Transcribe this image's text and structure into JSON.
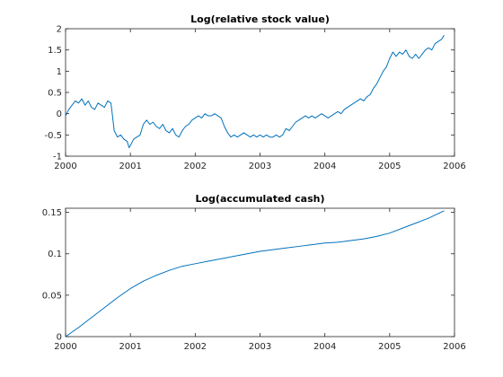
{
  "chart_data": [
    {
      "type": "line",
      "title": "Log(relative stock value)",
      "xlabel": "",
      "ylabel": "",
      "xlim": [
        2000,
        2006
      ],
      "ylim": [
        -1,
        2
      ],
      "xticks": [
        2000,
        2001,
        2002,
        2003,
        2004,
        2005,
        2006
      ],
      "yticks": [
        -1,
        -0.5,
        0,
        0.5,
        1,
        1.5,
        2
      ],
      "ytick_labels": [
        "-1",
        "-0.5",
        "0",
        "0.5",
        "1",
        "1.5",
        "2"
      ],
      "grid": false,
      "line_color": "#0072bd",
      "series": [
        {
          "x": [
            2000.0,
            2000.05,
            2000.1,
            2000.15,
            2000.2,
            2000.25,
            2000.3,
            2000.35,
            2000.4,
            2000.45,
            2000.5,
            2000.55,
            2000.6,
            2000.65,
            2000.7,
            2000.72,
            2000.75,
            2000.8,
            2000.85,
            2000.9,
            2000.95,
            2000.98,
            2001.0,
            2001.05,
            2001.1,
            2001.15,
            2001.2,
            2001.25,
            2001.3,
            2001.35,
            2001.4,
            2001.45,
            2001.5,
            2001.55,
            2001.6,
            2001.65,
            2001.7,
            2001.75,
            2001.8,
            2001.85,
            2001.9,
            2001.95,
            2002.0,
            2002.05,
            2002.1,
            2002.15,
            2002.2,
            2002.25,
            2002.3,
            2002.35,
            2002.4,
            2002.45,
            2002.5,
            2002.55,
            2002.6,
            2002.65,
            2002.7,
            2002.75,
            2002.8,
            2002.85,
            2002.9,
            2002.95,
            2003.0,
            2003.05,
            2003.1,
            2003.15,
            2003.2,
            2003.25,
            2003.3,
            2003.35,
            2003.4,
            2003.45,
            2003.5,
            2003.55,
            2003.6,
            2003.65,
            2003.7,
            2003.75,
            2003.8,
            2003.85,
            2003.9,
            2003.95,
            2004.0,
            2004.05,
            2004.1,
            2004.15,
            2004.2,
            2004.25,
            2004.3,
            2004.35,
            2004.4,
            2004.45,
            2004.5,
            2004.55,
            2004.6,
            2004.65,
            2004.7,
            2004.75,
            2004.8,
            2004.85,
            2004.9,
            2004.95,
            2005.0,
            2005.05,
            2005.1,
            2005.15,
            2005.2,
            2005.25,
            2005.3,
            2005.35,
            2005.4,
            2005.45,
            2005.5,
            2005.55,
            2005.6,
            2005.65,
            2005.7,
            2005.75,
            2005.8,
            2005.84
          ],
          "values": [
            -0.05,
            0.1,
            0.2,
            0.3,
            0.25,
            0.35,
            0.2,
            0.3,
            0.15,
            0.1,
            0.25,
            0.2,
            0.15,
            0.3,
            0.25,
            0.0,
            -0.4,
            -0.55,
            -0.5,
            -0.6,
            -0.65,
            -0.8,
            -0.75,
            -0.6,
            -0.55,
            -0.5,
            -0.25,
            -0.15,
            -0.25,
            -0.2,
            -0.3,
            -0.35,
            -0.25,
            -0.4,
            -0.45,
            -0.35,
            -0.5,
            -0.55,
            -0.4,
            -0.3,
            -0.25,
            -0.15,
            -0.1,
            -0.05,
            -0.1,
            0.0,
            -0.05,
            -0.05,
            0.0,
            -0.05,
            -0.1,
            -0.3,
            -0.45,
            -0.55,
            -0.5,
            -0.55,
            -0.5,
            -0.45,
            -0.5,
            -0.55,
            -0.5,
            -0.55,
            -0.5,
            -0.55,
            -0.5,
            -0.55,
            -0.55,
            -0.5,
            -0.55,
            -0.5,
            -0.35,
            -0.4,
            -0.3,
            -0.2,
            -0.15,
            -0.1,
            -0.05,
            -0.1,
            -0.05,
            -0.1,
            -0.05,
            0.0,
            -0.05,
            -0.1,
            -0.05,
            -0.0,
            0.05,
            0.0,
            0.1,
            0.15,
            0.2,
            0.25,
            0.3,
            0.35,
            0.3,
            0.4,
            0.45,
            0.6,
            0.7,
            0.85,
            1.0,
            1.1,
            1.3,
            1.45,
            1.35,
            1.45,
            1.4,
            1.5,
            1.35,
            1.3,
            1.4,
            1.3,
            1.4,
            1.5,
            1.55,
            1.5,
            1.65,
            1.7,
            1.75,
            1.85
          ]
        }
      ]
    },
    {
      "type": "line",
      "title": "Log(accumulated cash)",
      "xlabel": "",
      "ylabel": "",
      "xlim": [
        2000,
        2006
      ],
      "ylim": [
        0,
        0.155
      ],
      "xticks": [
        2000,
        2001,
        2002,
        2003,
        2004,
        2005,
        2006
      ],
      "yticks": [
        0,
        0.05,
        0.1,
        0.15
      ],
      "ytick_labels": [
        "0",
        "0.05",
        "0.1",
        "0.15"
      ],
      "grid": false,
      "line_color": "#0072bd",
      "series": [
        {
          "x": [
            2000.0,
            2000.2,
            2000.4,
            2000.6,
            2000.8,
            2001.0,
            2001.2,
            2001.4,
            2001.6,
            2001.8,
            2002.0,
            2002.2,
            2002.4,
            2002.6,
            2002.8,
            2003.0,
            2003.2,
            2003.4,
            2003.6,
            2003.8,
            2004.0,
            2004.2,
            2004.4,
            2004.6,
            2004.8,
            2005.0,
            2005.2,
            2005.4,
            2005.6,
            2005.84
          ],
          "values": [
            0.0,
            0.011,
            0.023,
            0.035,
            0.047,
            0.058,
            0.067,
            0.074,
            0.08,
            0.085,
            0.088,
            0.091,
            0.094,
            0.097,
            0.1,
            0.103,
            0.105,
            0.107,
            0.109,
            0.111,
            0.113,
            0.114,
            0.116,
            0.118,
            0.121,
            0.125,
            0.131,
            0.137,
            0.143,
            0.152
          ]
        }
      ]
    }
  ]
}
